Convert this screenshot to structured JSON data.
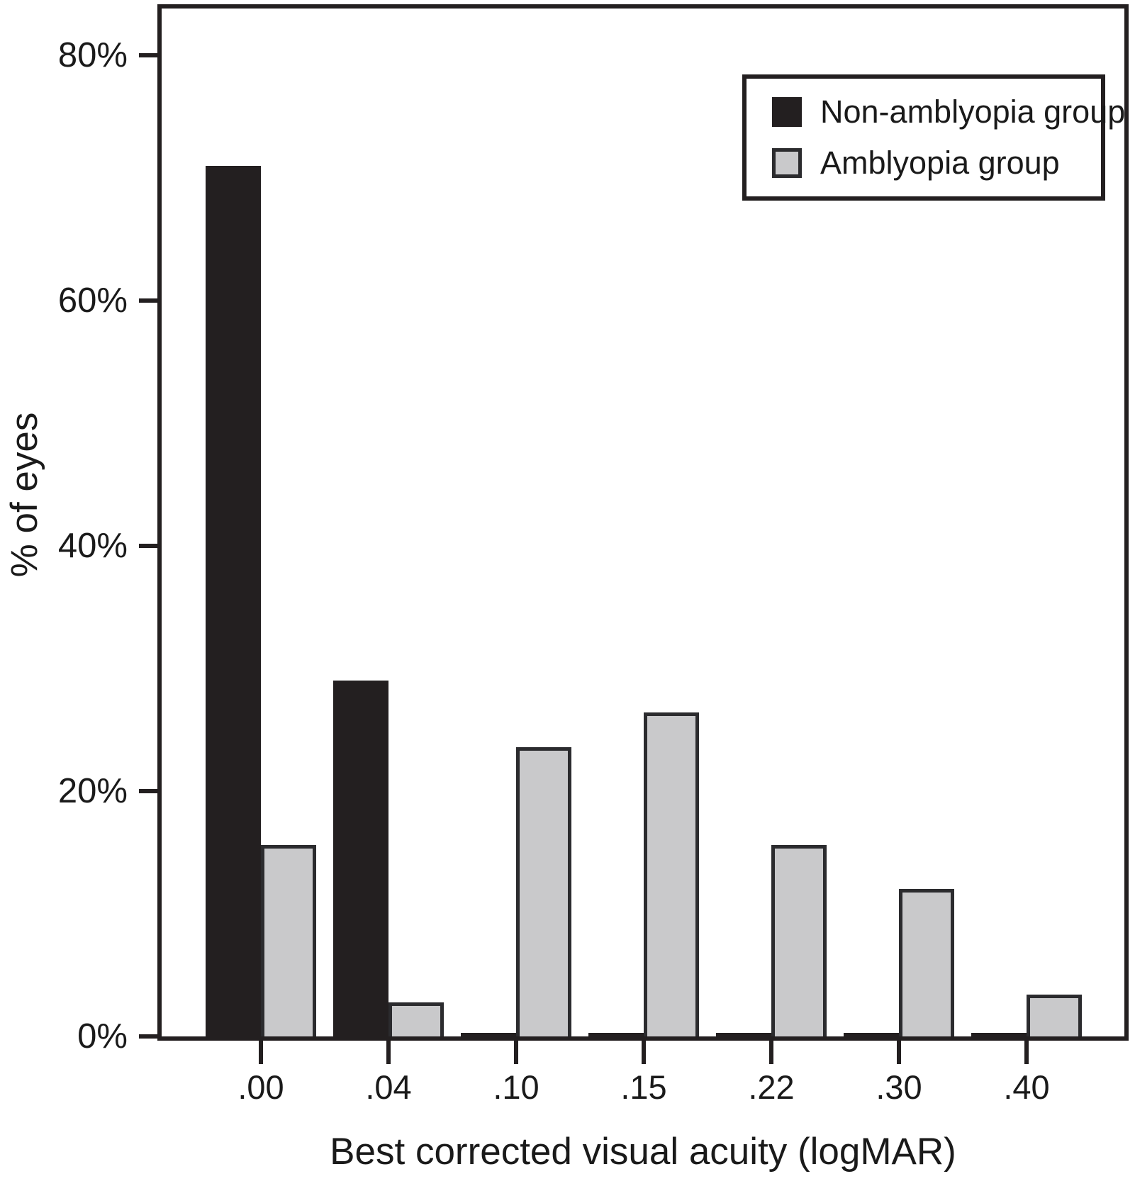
{
  "figure": {
    "xlabel": "Best corrected visual acuity (logMAR)",
    "ylabel": "% of eyes"
  },
  "legend": {
    "position": "top-right",
    "items": [
      {
        "label": "Non-amblyopia group",
        "swatch_color": "#231f20"
      },
      {
        "label": "Amblyopia group",
        "swatch_color": "#c9c9cb"
      }
    ]
  },
  "colors": {
    "non_amblyopia_bar": "#231f20",
    "amblyopia_bar_fill": "#c9c9cb",
    "amblyopia_bar_border": "#2b2b2e",
    "axis": "#231f20",
    "background": "#ffffff"
  },
  "chart_data": {
    "type": "bar",
    "title": "",
    "xlabel": "Best corrected visual acuity (logMAR)",
    "ylabel": "% of eyes",
    "categories": [
      ".00",
      ".04",
      ".10",
      ".15",
      ".22",
      ".30",
      ".40"
    ],
    "series": [
      {
        "name": "Non-amblyopia group",
        "color": "#231f20",
        "values": [
          71,
          29,
          0.3,
          0.3,
          0.3,
          0.3,
          0.3
        ]
      },
      {
        "name": "Amblyopia group",
        "color": "#c9c9cb",
        "values": [
          15.6,
          2.8,
          23.6,
          26.4,
          15.6,
          12,
          3.4
        ]
      }
    ],
    "y_ticks": [
      {
        "value": 0,
        "label": "0%"
      },
      {
        "value": 20,
        "label": "20%"
      },
      {
        "value": 40,
        "label": "40%"
      },
      {
        "value": 60,
        "label": "60%"
      },
      {
        "value": 80,
        "label": "80%"
      }
    ],
    "ylim": [
      0,
      84
    ],
    "grid": false,
    "legend_position": "top-right"
  }
}
